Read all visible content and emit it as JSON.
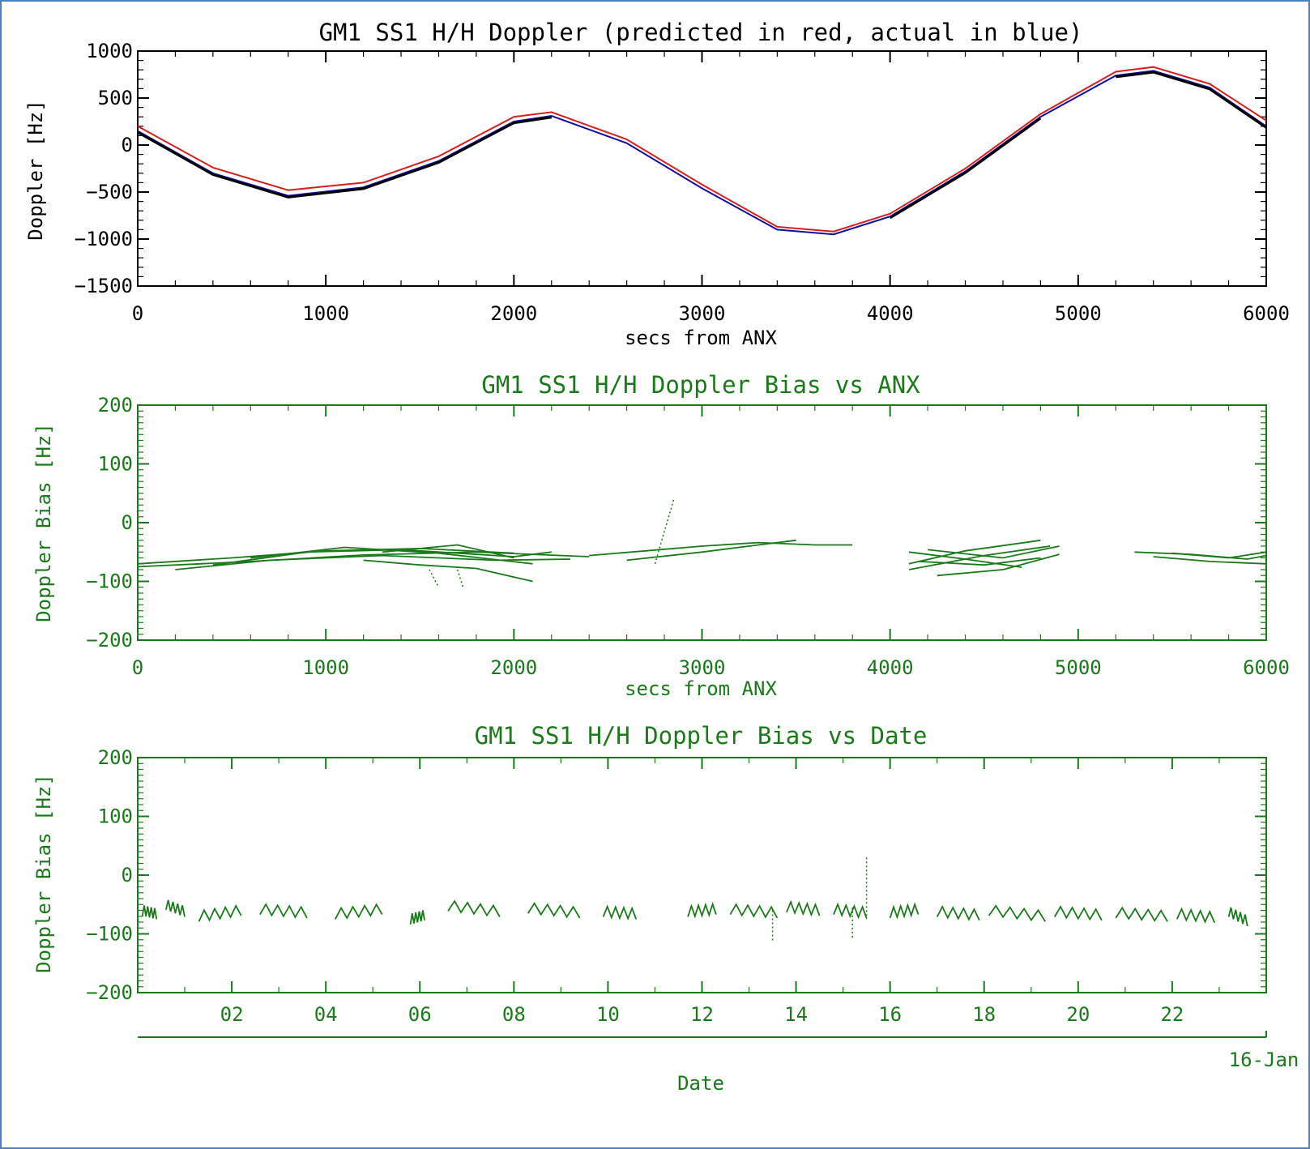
{
  "chart_data": [
    {
      "type": "line",
      "title": "GM1 SS1 H/H Doppler (predicted in red, actual in blue)",
      "xlabel": "secs from ANX",
      "ylabel": "Doppler [Hz]",
      "xlim": [
        0,
        6000
      ],
      "ylim": [
        -1500,
        1000
      ],
      "xticks": [
        0,
        1000,
        2000,
        3000,
        4000,
        5000,
        6000
      ],
      "yticks": [
        -1500,
        -1000,
        -500,
        0,
        500,
        1000
      ],
      "colors": {
        "axes": "#000000",
        "predicted": "#d62020",
        "actual": "#1010a0",
        "measured": "#000000"
      },
      "series": [
        {
          "name": "predicted",
          "x": [
            0,
            400,
            800,
            1200,
            1600,
            2000,
            2200,
            2600,
            3000,
            3400,
            3700,
            4000,
            4400,
            4800,
            5200,
            5400,
            5700,
            6000
          ],
          "y": [
            200,
            -240,
            -480,
            -400,
            -120,
            300,
            350,
            60,
            -420,
            -870,
            -920,
            -730,
            -250,
            330,
            780,
            830,
            650,
            260
          ]
        },
        {
          "name": "actual",
          "x": [
            0,
            400,
            800,
            1200,
            1600,
            2000,
            2200,
            2600,
            3000,
            3400,
            3700,
            4000,
            4400,
            4800,
            5200,
            5400,
            5700,
            6000
          ],
          "y": [
            150,
            -300,
            -540,
            -450,
            -170,
            250,
            310,
            20,
            -460,
            -900,
            -950,
            -760,
            -280,
            300,
            740,
            790,
            610,
            200
          ]
        }
      ]
    },
    {
      "type": "line",
      "title": "GM1 SS1 H/H Doppler Bias vs ANX",
      "xlabel": "secs from ANX",
      "ylabel": "Doppler Bias [Hz]",
      "xlim": [
        0,
        6000
      ],
      "ylim": [
        -200,
        200
      ],
      "xticks": [
        0,
        1000,
        2000,
        3000,
        4000,
        5000,
        6000
      ],
      "yticks": [
        -200,
        -100,
        0,
        100,
        200
      ],
      "colors": {
        "series": "#1a7a1a"
      },
      "segments": [
        {
          "x": [
            0,
            600,
            1200,
            1800,
            2400
          ],
          "y": [
            -75,
            -66,
            -55,
            -50,
            -58
          ]
        },
        {
          "x": [
            0,
            500,
            1000,
            1500,
            2000
          ],
          "y": [
            -70,
            -60,
            -48,
            -44,
            -52
          ]
        },
        {
          "x": [
            200,
            700,
            1300,
            1900,
            2300
          ],
          "y": [
            -80,
            -64,
            -56,
            -64,
            -62
          ]
        },
        {
          "x": [
            400,
            900,
            1400,
            2000,
            2200
          ],
          "y": [
            -72,
            -50,
            -46,
            -58,
            -50
          ]
        },
        {
          "x": [
            600,
            1100,
            1600,
            2100
          ],
          "y": [
            -60,
            -42,
            -52,
            -70
          ]
        },
        {
          "x": [
            1200,
            1500,
            1800,
            2100
          ],
          "y": [
            -64,
            -72,
            -78,
            -100
          ]
        },
        {
          "x": [
            1300,
            1700,
            2000
          ],
          "y": [
            -50,
            -38,
            -60
          ]
        },
        {
          "x": [
            2400,
            2700,
            3000,
            3300,
            3600,
            3800
          ],
          "y": [
            -56,
            -48,
            -40,
            -34,
            -38,
            -38
          ]
        },
        {
          "x": [
            2600,
            3000,
            3300,
            3500
          ],
          "y": [
            -64,
            -50,
            -38,
            -30
          ]
        },
        {
          "x": [
            4100,
            4400,
            4700
          ],
          "y": [
            -50,
            -62,
            -76
          ]
        },
        {
          "x": [
            4100,
            4500,
            4850
          ],
          "y": [
            -80,
            -56,
            -40
          ]
        },
        {
          "x": [
            4150,
            4500,
            4800
          ],
          "y": [
            -66,
            -72,
            -60
          ]
        },
        {
          "x": [
            4200,
            4600,
            4900
          ],
          "y": [
            -46,
            -60,
            -40
          ]
        },
        {
          "x": [
            4250,
            4600,
            4900
          ],
          "y": [
            -90,
            -80,
            -54
          ]
        },
        {
          "x": [
            4100,
            4400,
            4800
          ],
          "y": [
            -70,
            -48,
            -30
          ]
        },
        {
          "x": [
            5300,
            5600,
            5900,
            6000
          ],
          "y": [
            -50,
            -54,
            -62,
            -56
          ]
        },
        {
          "x": [
            5400,
            5700,
            6000
          ],
          "y": [
            -58,
            -66,
            -70
          ]
        },
        {
          "x": [
            5500,
            5800,
            6000
          ],
          "y": [
            -52,
            -60,
            -50
          ]
        }
      ],
      "dotted_segments": [
        {
          "x": [
            2750,
            2850
          ],
          "y": [
            -70,
            40
          ]
        },
        {
          "x": [
            1550,
            1600
          ],
          "y": [
            -80,
            -110
          ]
        },
        {
          "x": [
            1700,
            1730
          ],
          "y": [
            -80,
            -110
          ]
        }
      ]
    },
    {
      "type": "line",
      "title": "GM1 SS1 H/H Doppler Bias vs Date",
      "xlabel": "Date",
      "ylabel": "Doppler Bias [Hz]",
      "xlim": [
        0,
        24
      ],
      "ylim": [
        -200,
        200
      ],
      "xticks": [
        "02",
        "04",
        "06",
        "08",
        "10",
        "12",
        "14",
        "16",
        "18",
        "20",
        "22"
      ],
      "yticks": [
        -200,
        -100,
        0,
        100,
        200
      ],
      "date_label": "16-Jan",
      "colors": {
        "series": "#1a7a1a"
      },
      "clusters": [
        {
          "x": [
            0.1,
            0.4
          ],
          "y": [
            -60,
            -66
          ]
        },
        {
          "x": [
            0.6,
            1.0
          ],
          "y": [
            -50,
            -62
          ]
        },
        {
          "x": [
            1.3,
            2.2
          ],
          "y": [
            -70,
            -60
          ]
        },
        {
          "x": [
            2.6,
            3.6
          ],
          "y": [
            -58,
            -64
          ]
        },
        {
          "x": [
            4.2,
            5.2
          ],
          "y": [
            -66,
            -58
          ]
        },
        {
          "x": [
            5.8,
            6.1
          ],
          "y": [
            -75,
            -68
          ]
        },
        {
          "x": [
            6.6,
            7.7
          ],
          "y": [
            -52,
            -62
          ]
        },
        {
          "x": [
            8.3,
            9.4
          ],
          "y": [
            -56,
            -64
          ]
        },
        {
          "x": [
            9.9,
            10.6
          ],
          "y": [
            -62,
            -66
          ]
        },
        {
          "x": [
            11.7,
            12.3
          ],
          "y": [
            -62,
            -58
          ]
        },
        {
          "x": [
            12.6,
            13.6
          ],
          "y": [
            -58,
            -64
          ]
        },
        {
          "x": [
            13.8,
            14.5
          ],
          "y": [
            -54,
            -60
          ]
        },
        {
          "x": [
            14.8,
            15.5
          ],
          "y": [
            -58,
            -64
          ]
        },
        {
          "x": [
            16.0,
            16.6
          ],
          "y": [
            -64,
            -58
          ]
        },
        {
          "x": [
            17.0,
            17.9
          ],
          "y": [
            -62,
            -68
          ]
        },
        {
          "x": [
            18.1,
            19.3
          ],
          "y": [
            -60,
            -70
          ]
        },
        {
          "x": [
            19.5,
            20.5
          ],
          "y": [
            -62,
            -68
          ]
        },
        {
          "x": [
            20.8,
            21.9
          ],
          "y": [
            -64,
            -70
          ]
        },
        {
          "x": [
            22.1,
            22.9
          ],
          "y": [
            -66,
            -72
          ]
        },
        {
          "x": [
            23.2,
            23.6
          ],
          "y": [
            -62,
            -78
          ]
        }
      ],
      "dotted_segments": [
        {
          "x": [
            13.5,
            13.5
          ],
          "y": [
            -60,
            -115
          ]
        },
        {
          "x": [
            15.2,
            15.2
          ],
          "y": [
            -55,
            -110
          ]
        },
        {
          "x": [
            15.5,
            15.5
          ],
          "y": [
            30,
            -75
          ]
        }
      ]
    }
  ]
}
